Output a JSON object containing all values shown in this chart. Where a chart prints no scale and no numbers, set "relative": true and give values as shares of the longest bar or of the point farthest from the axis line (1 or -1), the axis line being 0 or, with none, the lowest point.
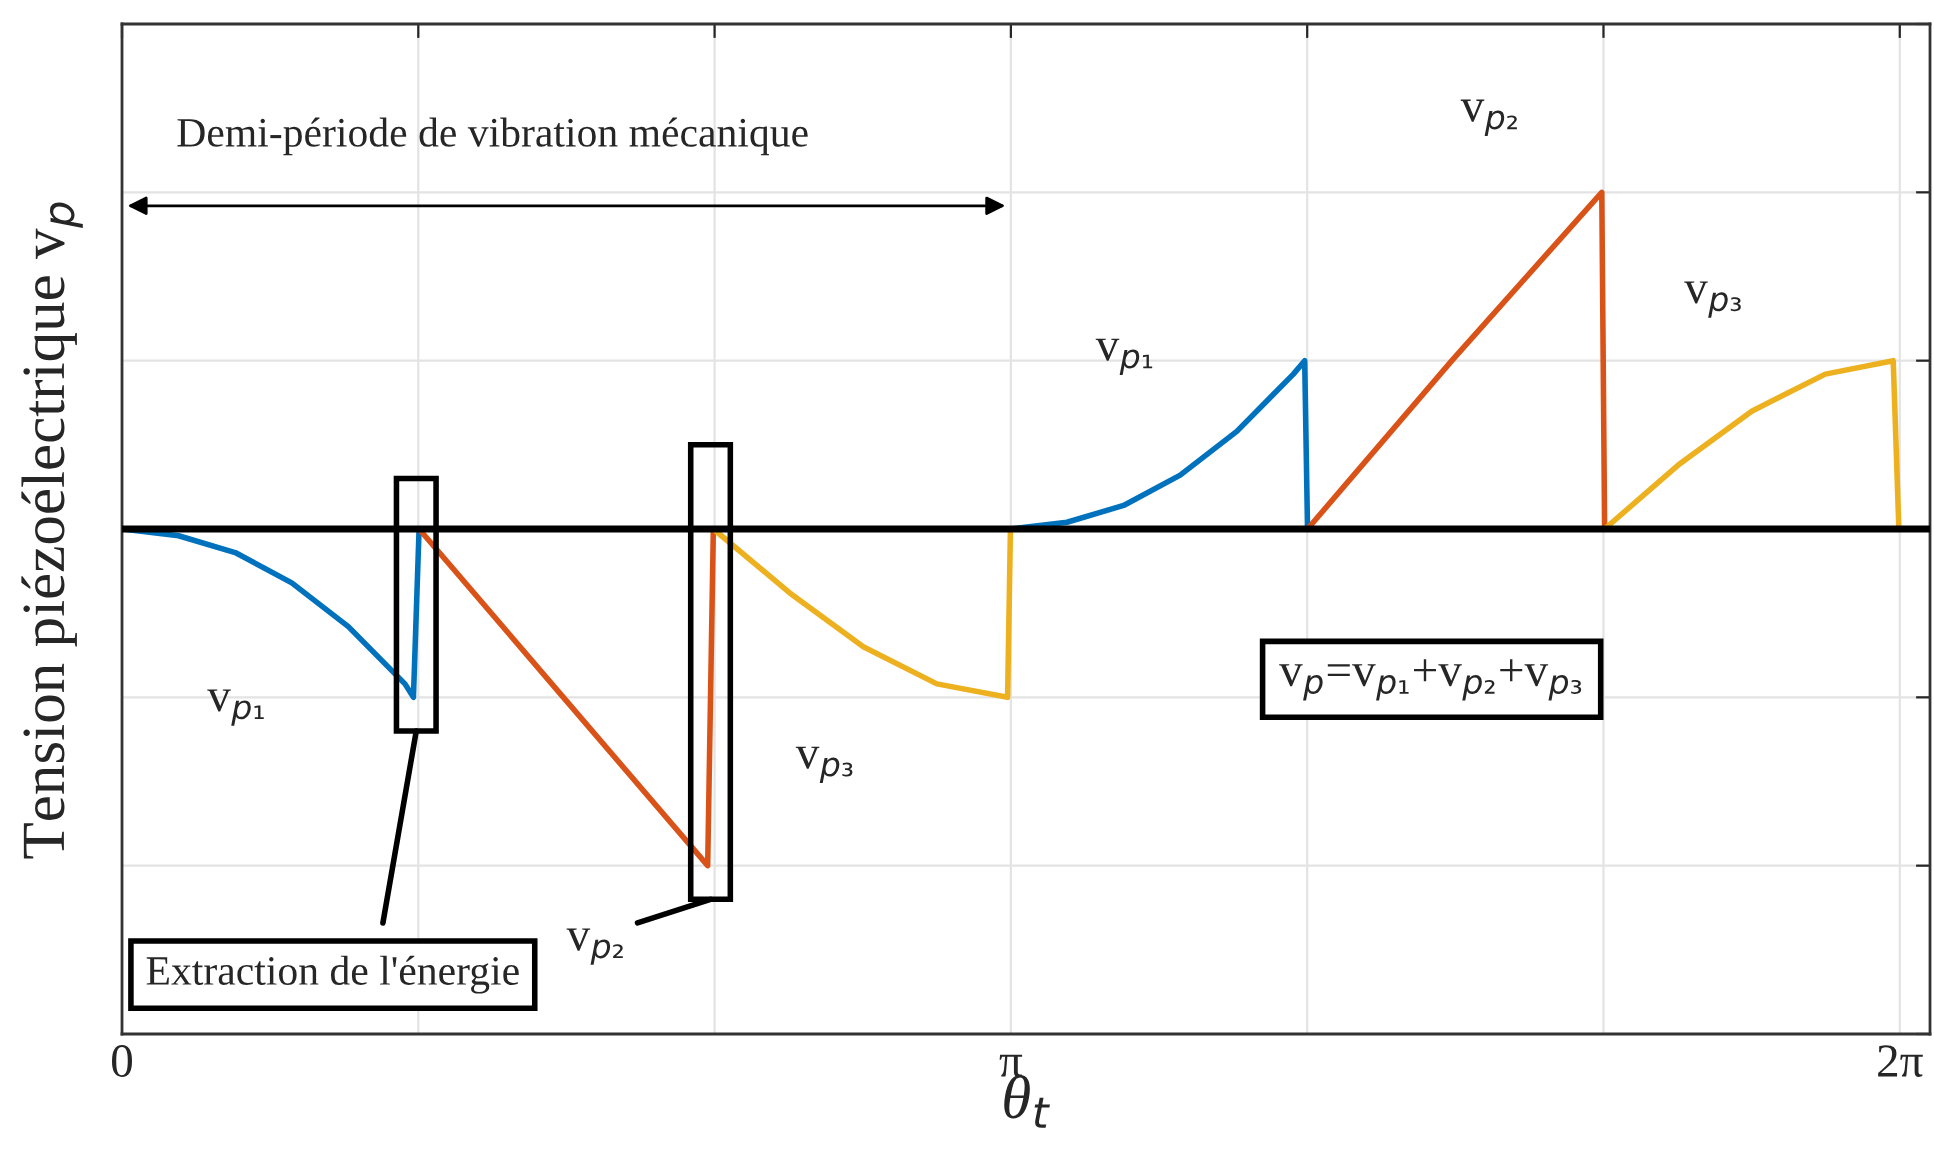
{
  "chart_data": {
    "type": "line",
    "relative": true,
    "xlabel": "θ$_{t}$",
    "ylabel": "Tension piézoélectrique v$_{p}$",
    "xlim": [
      0,
      6.39
    ],
    "xticks": [
      {
        "value": 0,
        "label": "0"
      },
      {
        "value": 1.0472,
        "label": null
      },
      {
        "value": 2.0944,
        "label": null
      },
      {
        "value": 3.1416,
        "label": "π"
      },
      {
        "value": 4.1888,
        "label": null
      },
      {
        "value": 5.236,
        "label": null
      },
      {
        "value": 6.2832,
        "label": "2π"
      }
    ],
    "tick_labels": "x",
    "grid": true,
    "legend": false,
    "line_style": "solid",
    "marker": "none",
    "series": [
      {
        "name": "v$_{p₁}$",
        "color": "#0072bd",
        "x": [
          0,
          0.2,
          0.4,
          0.6,
          0.8,
          1.0,
          1.03,
          1.05
        ],
        "values": [
          0,
          -0.02,
          -0.07,
          -0.16,
          -0.29,
          -0.46,
          -0.5,
          0
        ]
      },
      {
        "name": "v$_{p₂}$",
        "color": "#d95319",
        "x": [
          1.05,
          1.56,
          2.07,
          2.09
        ],
        "values": [
          0,
          -0.5,
          -1,
          0
        ]
      },
      {
        "name": "v$_{p₃}$",
        "color": "#edb120",
        "x": [
          2.09,
          2.36,
          2.62,
          2.88,
          3.13,
          3.14
        ],
        "values": [
          0,
          -0.19,
          -0.35,
          -0.46,
          -0.5,
          0
        ]
      },
      {
        "name": "v$_{p₁}$",
        "color": "#0072bd",
        "x": [
          3.14,
          3.34,
          3.54,
          3.74,
          3.94,
          4.14,
          4.18,
          4.19
        ],
        "values": [
          0,
          0.02,
          0.07,
          0.16,
          0.29,
          0.46,
          0.5,
          0
        ]
      },
      {
        "name": "v$_{p₂}$",
        "color": "#d95319",
        "x": [
          4.19,
          4.7,
          5.23,
          5.24
        ],
        "values": [
          0,
          0.5,
          1,
          0
        ]
      },
      {
        "name": "v$_{p₃}$",
        "color": "#edb120",
        "x": [
          5.24,
          5.5,
          5.76,
          6.02,
          6.26,
          6.28
        ],
        "values": [
          0,
          0.19,
          0.35,
          0.46,
          0.5,
          0
        ]
      }
    ],
    "ref_lines": [
      {
        "axis": "y",
        "value": 0,
        "color": "#000000"
      }
    ],
    "annotations": [
      "v$_{p}$=v$_{p₁}$+v$_{p₂}$+v$_{p₃}$",
      "Extraction de l'énergie",
      "Demi-période de vibration mécanique"
    ]
  }
}
